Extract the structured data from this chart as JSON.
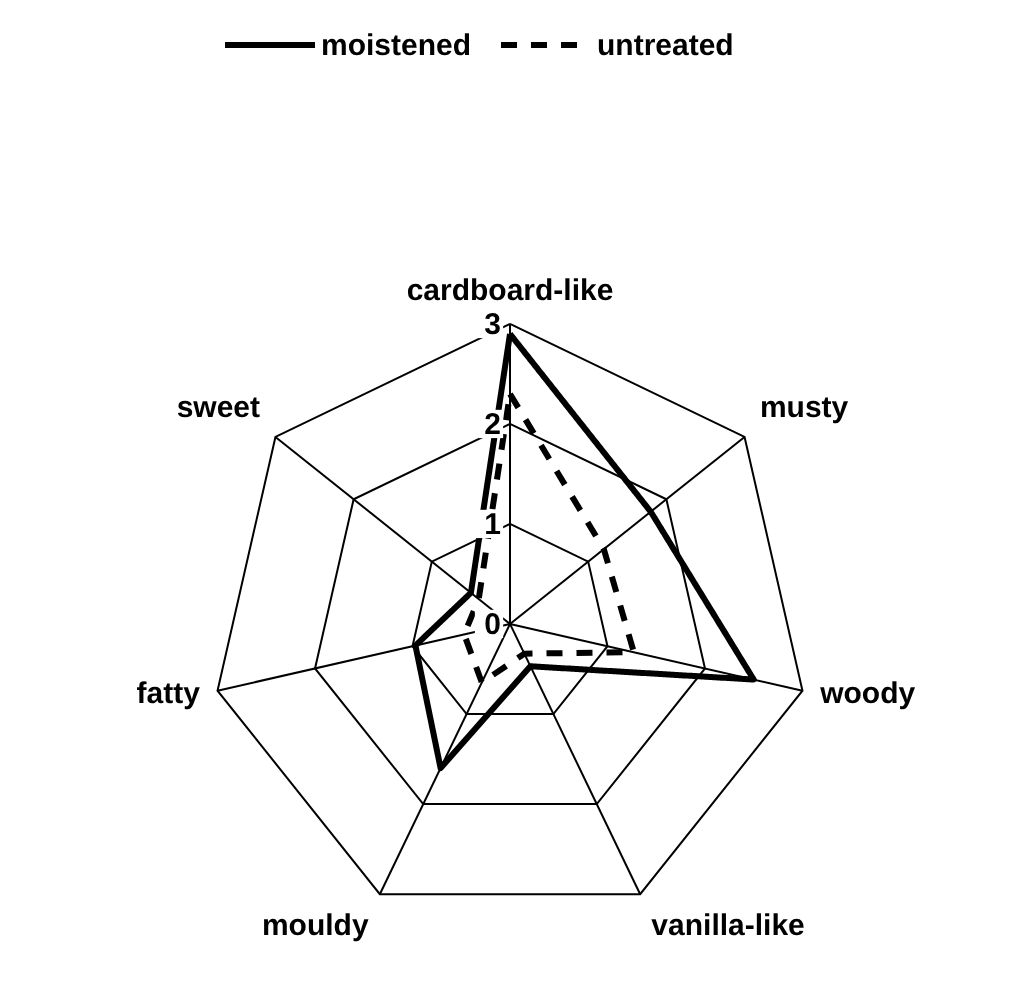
{
  "chart_data": {
    "type": "radar",
    "categories": [
      "cardboard-like",
      "musty",
      "woody",
      "vanilla-like",
      "mouldy",
      "fatty",
      "sweet"
    ],
    "series": [
      {
        "name": "moistened",
        "color": "#000000",
        "line_style": "solid",
        "values": [
          2.9,
          1.8,
          2.5,
          0.47,
          1.6,
          0.97,
          0.5
        ]
      },
      {
        "name": "untreated",
        "color": "#000000",
        "line_style": "dashed",
        "values": [
          2.3,
          1.2,
          1.27,
          0.33,
          0.65,
          0.47,
          0.4
        ]
      }
    ],
    "ylim": [
      0,
      3
    ],
    "yticks": [
      0,
      1,
      2,
      3
    ],
    "grid": true,
    "legend": "top",
    "marker": "none"
  }
}
